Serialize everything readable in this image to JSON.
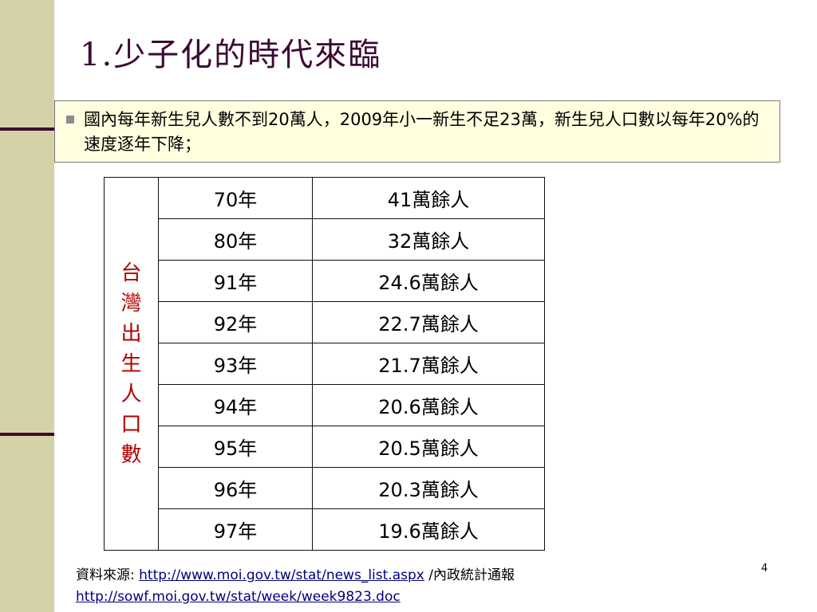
{
  "slide": {
    "title": "1.少子化的時代來臨",
    "bullet": "國內每年新生兒人數不到20萬人，2009年小一新生不足23萬，新生兒人口數以每年20%的速度逐年下降；",
    "table_label": "台灣出生人口數",
    "rows": [
      {
        "year": "70年",
        "count": "41萬餘人"
      },
      {
        "year": "80年",
        "count": "32萬餘人"
      },
      {
        "year": "91年",
        "count": "24.6萬餘人"
      },
      {
        "year": "92年",
        "count": "22.7萬餘人"
      },
      {
        "year": "93年",
        "count": "21.7萬餘人"
      },
      {
        "year": "94年",
        "count": "20.6萬餘人"
      },
      {
        "year": "95年",
        "count": "20.5萬餘人"
      },
      {
        "year": "96年",
        "count": "20.3萬餘人"
      },
      {
        "year": "97年",
        "count": "19.6萬餘人"
      }
    ],
    "source_label": "資料來源: ",
    "source_link1": "http://www.moi.gov.tw/stat/news_list.aspx",
    "source_suffix": " /內政統計通報",
    "source_link2": "http://sowf.moi.gov.tw/stat/week/week9823.doc",
    "page_number": "4"
  },
  "colors": {
    "side_band": "#d6d2a8",
    "title": "#3d0a33",
    "bullet_box_bg": "#ffffe0",
    "table_label": "#b30000",
    "link": "#000080"
  }
}
